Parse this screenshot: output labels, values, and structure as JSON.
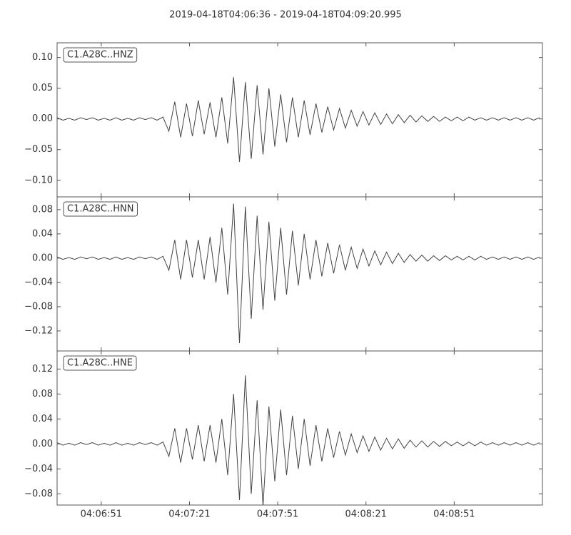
{
  "title": "2019-04-18T04:06:36  -  2019-04-18T04:09:20.995",
  "chart_data": [
    {
      "type": "line",
      "label": "C1.A28C..HNZ",
      "xlim": [
        0,
        164.995
      ],
      "ylim": [
        -0.127,
        0.124
      ],
      "yticks": [
        {
          "value": -0.1,
          "label": "−0.10"
        },
        {
          "value": -0.05,
          "label": "−0.05"
        },
        {
          "value": 0,
          "label": "0.00"
        },
        {
          "value": 0.05,
          "label": "0.05"
        },
        {
          "value": 0.1,
          "label": "0.10"
        }
      ],
      "xticks": [
        15,
        45,
        75,
        105,
        135
      ],
      "x": [
        0,
        2,
        4,
        6,
        8,
        10,
        12,
        14,
        16,
        18,
        20,
        22,
        24,
        26,
        28,
        30,
        32,
        34,
        36,
        38,
        40,
        42,
        44,
        46,
        48,
        50,
        52,
        54,
        56,
        58,
        60,
        62,
        64,
        66,
        68,
        70,
        72,
        74,
        76,
        78,
        80,
        82,
        84,
        86,
        88,
        90,
        92,
        94,
        96,
        98,
        100,
        102,
        104,
        106,
        108,
        110,
        112,
        114,
        116,
        118,
        120,
        122,
        124,
        126,
        128,
        130,
        132,
        134,
        136,
        138,
        140,
        142,
        144,
        146,
        148,
        150,
        152,
        154,
        156,
        158,
        160,
        162,
        164
      ],
      "series": [
        {
          "color": "#444444",
          "values": [
            0.002,
            -0.002,
            0.001,
            -0.002,
            0.002,
            -0.001,
            0.002,
            -0.002,
            0.001,
            -0.002,
            0.002,
            -0.002,
            0.001,
            -0.002,
            0.002,
            -0.001,
            0.002,
            -0.002,
            0.003,
            -0.02,
            0.028,
            -0.03,
            0.025,
            -0.028,
            0.03,
            -0.025,
            0.027,
            -0.03,
            0.035,
            -0.04,
            0.068,
            -0.07,
            0.06,
            -0.065,
            0.055,
            -0.058,
            0.05,
            -0.045,
            0.04,
            -0.038,
            0.035,
            -0.03,
            0.03,
            -0.026,
            0.025,
            -0.022,
            0.02,
            -0.018,
            0.017,
            -0.015,
            0.014,
            -0.012,
            0.012,
            -0.01,
            0.01,
            -0.009,
            0.008,
            -0.008,
            0.007,
            -0.006,
            0.006,
            -0.005,
            0.005,
            -0.004,
            0.004,
            -0.004,
            0.003,
            -0.003,
            0.003,
            -0.003,
            0.003,
            -0.002,
            0.002,
            -0.002,
            0.002,
            -0.002,
            0.002,
            -0.002,
            0.002,
            -0.002,
            0.002,
            -0.002,
            0.002
          ]
        }
      ]
    },
    {
      "type": "line",
      "label": "C1.A28C..HNN",
      "xlim": [
        0,
        164.995
      ],
      "ylim": [
        -0.153,
        0.101
      ],
      "yticks": [
        {
          "value": -0.12,
          "label": "−0.12"
        },
        {
          "value": -0.08,
          "label": "−0.08"
        },
        {
          "value": -0.04,
          "label": "−0.04"
        },
        {
          "value": 0,
          "label": "0.00"
        },
        {
          "value": 0.04,
          "label": "0.04"
        },
        {
          "value": 0.08,
          "label": "0.08"
        }
      ],
      "xticks": [
        15,
        45,
        75,
        105,
        135
      ],
      "x": [
        0,
        2,
        4,
        6,
        8,
        10,
        12,
        14,
        16,
        18,
        20,
        22,
        24,
        26,
        28,
        30,
        32,
        34,
        36,
        38,
        40,
        42,
        44,
        46,
        48,
        50,
        52,
        54,
        56,
        58,
        60,
        62,
        64,
        66,
        68,
        70,
        72,
        74,
        76,
        78,
        80,
        82,
        84,
        86,
        88,
        90,
        92,
        94,
        96,
        98,
        100,
        102,
        104,
        106,
        108,
        110,
        112,
        114,
        116,
        118,
        120,
        122,
        124,
        126,
        128,
        130,
        132,
        134,
        136,
        138,
        140,
        142,
        144,
        146,
        148,
        150,
        152,
        154,
        156,
        158,
        160,
        162,
        164
      ],
      "series": [
        {
          "color": "#444444",
          "values": [
            0.002,
            -0.002,
            0.001,
            -0.002,
            0.002,
            -0.001,
            0.002,
            -0.002,
            0.001,
            -0.002,
            0.002,
            -0.002,
            0.001,
            -0.002,
            0.002,
            -0.001,
            0.002,
            -0.002,
            0.003,
            -0.02,
            0.03,
            -0.035,
            0.03,
            -0.032,
            0.03,
            -0.035,
            0.035,
            -0.04,
            0.05,
            -0.06,
            0.09,
            -0.14,
            0.085,
            -0.1,
            0.07,
            -0.085,
            0.06,
            -0.07,
            0.05,
            -0.06,
            0.045,
            -0.045,
            0.04,
            -0.035,
            0.03,
            -0.03,
            0.025,
            -0.025,
            0.022,
            -0.02,
            0.018,
            -0.017,
            0.015,
            -0.013,
            0.012,
            -0.011,
            0.01,
            -0.009,
            0.008,
            -0.007,
            0.006,
            -0.005,
            0.005,
            -0.005,
            0.004,
            -0.004,
            0.004,
            -0.003,
            0.003,
            -0.003,
            0.003,
            -0.003,
            0.003,
            -0.002,
            0.002,
            -0.002,
            0.002,
            -0.002,
            0.002,
            -0.002,
            0.002,
            -0.002,
            0.002
          ]
        }
      ]
    },
    {
      "type": "line",
      "label": "C1.A28C..HNE",
      "xlim": [
        0,
        164.995
      ],
      "ylim": [
        -0.098,
        0.149
      ],
      "yticks": [
        {
          "value": -0.08,
          "label": "−0.08"
        },
        {
          "value": -0.04,
          "label": "−0.04"
        },
        {
          "value": 0,
          "label": "0.00"
        },
        {
          "value": 0.04,
          "label": "0.04"
        },
        {
          "value": 0.08,
          "label": "0.08"
        },
        {
          "value": 0.12,
          "label": "0.12"
        }
      ],
      "xticks": [
        {
          "value": 15,
          "label": "04:06:51"
        },
        {
          "value": 45,
          "label": "04:07:21"
        },
        {
          "value": 75,
          "label": "04:07:51"
        },
        {
          "value": 105,
          "label": "04:08:21"
        },
        {
          "value": 135,
          "label": "04:08:51"
        }
      ],
      "x": [
        0,
        2,
        4,
        6,
        8,
        10,
        12,
        14,
        16,
        18,
        20,
        22,
        24,
        26,
        28,
        30,
        32,
        34,
        36,
        38,
        40,
        42,
        44,
        46,
        48,
        50,
        52,
        54,
        56,
        58,
        60,
        62,
        64,
        66,
        68,
        70,
        72,
        74,
        76,
        78,
        80,
        82,
        84,
        86,
        88,
        90,
        92,
        94,
        96,
        98,
        100,
        102,
        104,
        106,
        108,
        110,
        112,
        114,
        116,
        118,
        120,
        122,
        124,
        126,
        128,
        130,
        132,
        134,
        136,
        138,
        140,
        142,
        144,
        146,
        148,
        150,
        152,
        154,
        156,
        158,
        160,
        162,
        164
      ],
      "series": [
        {
          "color": "#444444",
          "values": [
            0.002,
            -0.002,
            0.001,
            -0.002,
            0.002,
            -0.001,
            0.002,
            -0.002,
            0.001,
            -0.002,
            0.002,
            -0.002,
            0.001,
            -0.002,
            0.002,
            -0.001,
            0.002,
            -0.002,
            0.003,
            -0.02,
            0.025,
            -0.03,
            0.025,
            -0.025,
            0.03,
            -0.028,
            0.03,
            -0.03,
            0.04,
            -0.05,
            0.08,
            -0.09,
            0.11,
            -0.08,
            0.07,
            -0.1,
            0.06,
            -0.06,
            0.055,
            -0.05,
            0.045,
            -0.04,
            0.04,
            -0.035,
            0.03,
            -0.028,
            0.025,
            -0.022,
            0.02,
            -0.018,
            0.016,
            -0.014,
            0.013,
            -0.012,
            0.011,
            -0.01,
            0.009,
            -0.008,
            0.008,
            -0.007,
            0.006,
            -0.005,
            0.005,
            -0.005,
            0.004,
            -0.004,
            0.004,
            -0.003,
            0.003,
            -0.003,
            0.003,
            -0.003,
            0.003,
            -0.002,
            0.002,
            -0.002,
            0.002,
            -0.002,
            0.002,
            -0.002,
            0.002,
            -0.002,
            0.002
          ]
        }
      ]
    }
  ]
}
